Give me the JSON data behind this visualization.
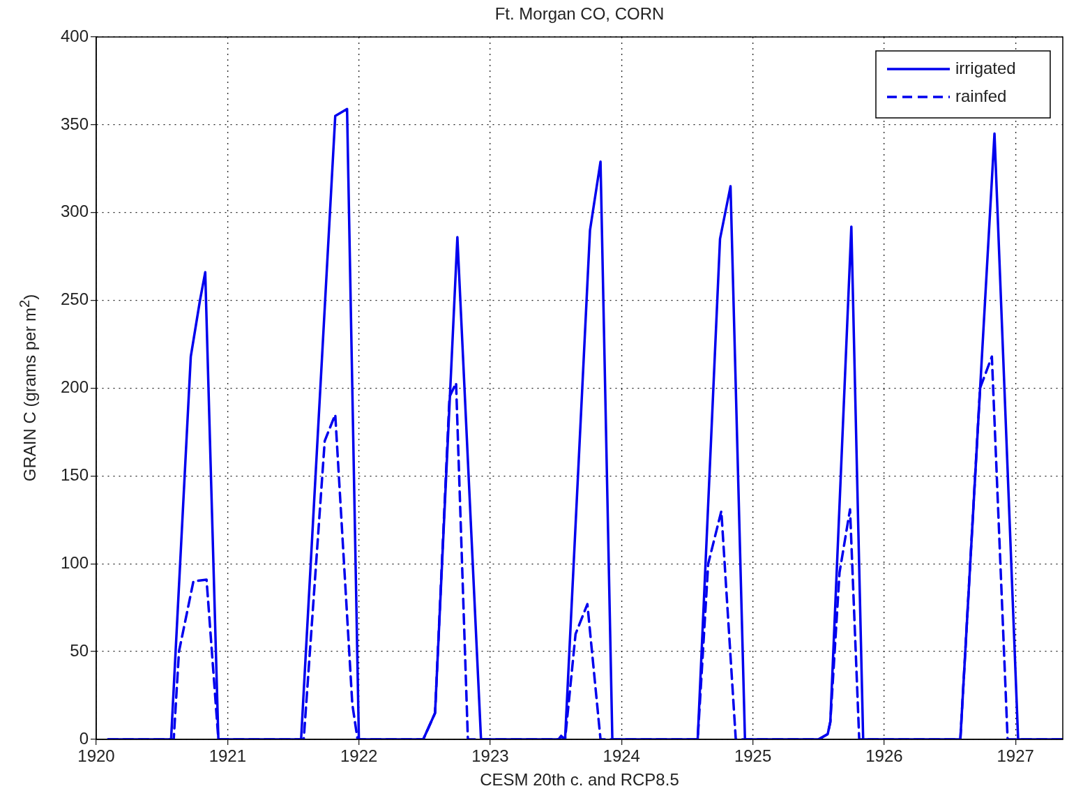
{
  "chart_data": {
    "type": "line",
    "title": "Ft. Morgan CO, CORN",
    "xlabel": "CESM 20th c. and RCP8.5",
    "ylabel": "GRAIN C (grams per m$^{2}$)",
    "xlim": [
      1920,
      1927.36
    ],
    "xticks": [
      1920,
      1921,
      1922,
      1923,
      1924,
      1925,
      1926,
      1927
    ],
    "ylim": [
      0,
      400
    ],
    "yticks": [
      0,
      50,
      100,
      150,
      200,
      250,
      300,
      350,
      400
    ],
    "grid": true,
    "legend": "top right",
    "marker": "none",
    "series": [
      {
        "name": "irrigated",
        "color": "#0000ee",
        "line_style": "solid",
        "x": [
          1920.09,
          1920.57,
          1920.72,
          1920.79,
          1920.83,
          1920.93,
          1921.56,
          1921.82,
          1921.91,
          1922.0,
          1922.49,
          1922.58,
          1922.75,
          1922.93,
          1923.52,
          1923.54,
          1923.57,
          1923.76,
          1923.84,
          1923.93,
          1924.58,
          1924.75,
          1924.83,
          1924.94,
          1925.5,
          1925.57,
          1925.59,
          1925.75,
          1925.84,
          1926.58,
          1926.84,
          1927.02,
          1927.36
        ],
        "values": [
          0,
          0,
          218,
          250,
          266,
          0,
          0,
          355,
          359,
          0,
          0,
          15,
          286,
          0,
          0,
          2,
          0,
          290,
          329,
          0,
          0,
          285,
          315,
          0,
          0,
          3,
          10,
          292,
          0,
          0,
          345,
          0,
          0
        ]
      },
      {
        "name": "rainfed",
        "color": "#0000ee",
        "line_style": "dashed",
        "x": [
          1920.09,
          1920.59,
          1920.63,
          1920.74,
          1920.84,
          1920.93,
          1921.58,
          1921.74,
          1921.82,
          1921.95,
          1921.99,
          1922.49,
          1922.58,
          1922.69,
          1922.74,
          1922.83,
          1923.57,
          1923.65,
          1923.74,
          1923.84,
          1924.58,
          1924.66,
          1924.76,
          1924.87,
          1925.5,
          1925.57,
          1925.59,
          1925.66,
          1925.74,
          1925.81,
          1926.58,
          1926.73,
          1926.82,
          1926.94,
          1927.36
        ],
        "values": [
          0,
          0,
          50,
          90,
          91,
          0,
          0,
          170,
          185,
          20,
          0,
          0,
          15,
          195,
          203,
          0,
          0,
          60,
          77,
          0,
          0,
          100,
          130,
          0,
          0,
          3,
          10,
          95,
          131,
          0,
          0,
          200,
          218,
          0,
          0
        ]
      }
    ]
  }
}
